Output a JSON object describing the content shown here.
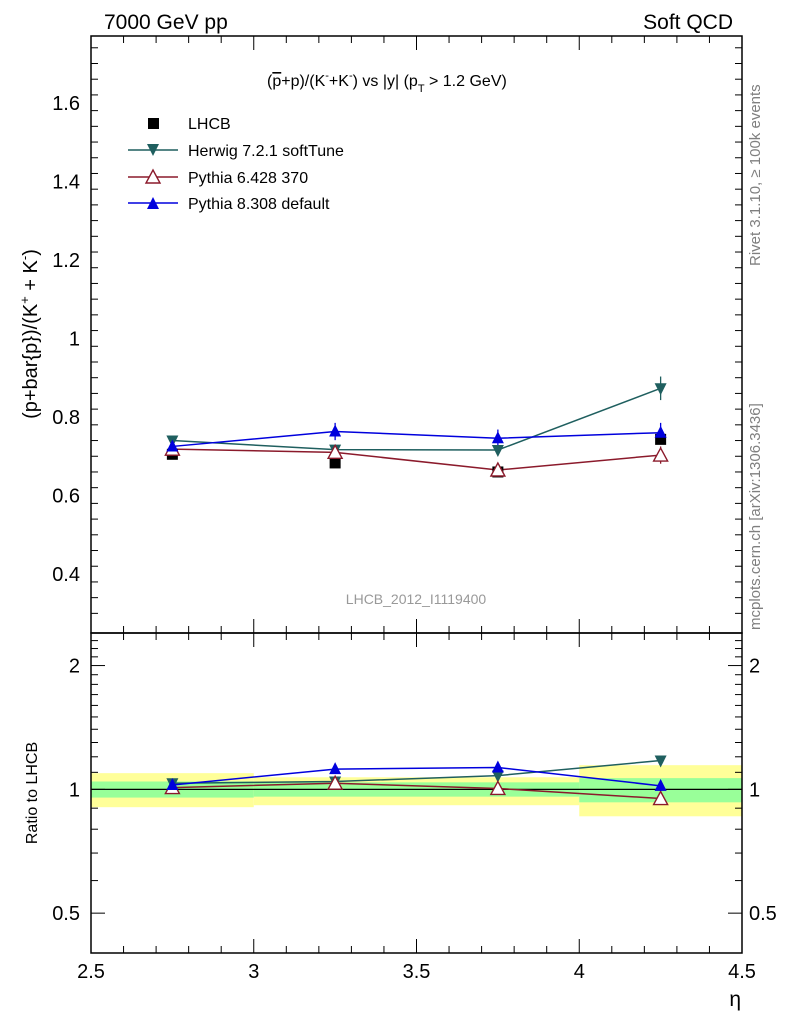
{
  "header": {
    "left": "7000 GeV pp",
    "right": "Soft QCD"
  },
  "side_labels": {
    "rivet": "Rivet 3.1.10, ≥ 100k events",
    "mcplots": "mcplots.cern.ch [arXiv:1306.3436]"
  },
  "analysis_label": "LHCB_2012_I1119400",
  "colors": {
    "data": "#000000",
    "herwig": "#1f5f5f",
    "pythia6": "#8b1a2b",
    "pythia8": "#0000dd",
    "band_inner": "#99ff99",
    "band_outer": "#ffff99"
  },
  "chart_data": [
    {
      "type": "line",
      "panel": "main",
      "title": "(p̅+p)/(K⁻+K⁻) vs |y| (p_T > 1.2 GeV)",
      "title_parts": {
        "a": "(",
        "b": "p",
        "c": "+p)/(K",
        "d": "-",
        "e": "+K",
        "f": "-",
        "g": ") vs |y| (p",
        "h": "T",
        "i": " > 1.2 GeV)"
      },
      "ylabel": "(p+bar{p})/(K⁺ + K⁻)",
      "ylabel_parts": {
        "a": "(p+bar{p})/(K",
        "b": "+",
        "c": " + K",
        "d": "-",
        "e": ")"
      },
      "xlim": [
        2.5,
        4.5
      ],
      "ylim": [
        0.25,
        1.77
      ],
      "yticks": [
        "0.4",
        "0.6",
        "0.8",
        "1",
        "1.2",
        "1.4",
        "1.6"
      ],
      "ytick_values": [
        0.4,
        0.6,
        0.8,
        1.0,
        1.2,
        1.4,
        1.6
      ],
      "legend_position": "top-left",
      "x": [
        2.75,
        3.25,
        3.75,
        4.25
      ],
      "xerr": [
        0.25,
        0.25,
        0.25,
        0.25
      ],
      "series": [
        {
          "name": "LHCB",
          "key": "data",
          "marker": "square",
          "values": [
            0.705,
            0.683,
            0.66,
            0.743
          ]
        },
        {
          "name": "Herwig 7.2.1 softTune",
          "key": "herwig",
          "marker": "triangle-down",
          "values": [
            0.74,
            0.717,
            0.716,
            0.873
          ],
          "errors": [
            0.012,
            0.012,
            0.012,
            0.03
          ]
        },
        {
          "name": "Pythia 6.428 370",
          "key": "pythia6",
          "marker": "triangle-up-open",
          "values": [
            0.718,
            0.71,
            0.665,
            0.703
          ],
          "errors": [
            0.01,
            0.012,
            0.015,
            0.022
          ]
        },
        {
          "name": "Pythia 8.308 default",
          "key": "pythia8",
          "marker": "triangle-up",
          "values": [
            0.725,
            0.763,
            0.746,
            0.76
          ],
          "errors": [
            0.015,
            0.022,
            0.022,
            0.025
          ]
        }
      ]
    },
    {
      "type": "line",
      "panel": "ratio",
      "ylabel": "Ratio to LHCB",
      "xlabel": "η",
      "xlim": [
        2.5,
        4.5
      ],
      "ylim": [
        0.4,
        2.4
      ],
      "log_y": true,
      "yticks": [
        "0.5",
        "1",
        "2"
      ],
      "ytick_values": [
        0.5,
        1,
        2
      ],
      "xticks": [
        "2.5",
        "3",
        "3.5",
        "4",
        "4.5"
      ],
      "xtick_values": [
        2.5,
        3.0,
        3.5,
        4.0,
        4.5
      ],
      "x": [
        2.75,
        3.25,
        3.75,
        4.25
      ],
      "bands": [
        {
          "x0": 2.5,
          "x1": 3.0,
          "inner": [
            0.955,
            1.045
          ],
          "outer": [
            0.905,
            1.095
          ]
        },
        {
          "x0": 3.0,
          "x1": 3.5,
          "inner": [
            0.96,
            1.04
          ],
          "outer": [
            0.915,
            1.07
          ]
        },
        {
          "x0": 3.5,
          "x1": 4.0,
          "inner": [
            0.96,
            1.04
          ],
          "outer": [
            0.915,
            1.07
          ]
        },
        {
          "x0": 4.0,
          "x1": 4.5,
          "inner": [
            0.93,
            1.065
          ],
          "outer": [
            0.86,
            1.145
          ]
        }
      ],
      "series": [
        {
          "name": "Herwig 7.2.1 softTune",
          "key": "herwig",
          "marker": "triangle-down",
          "values": [
            1.035,
            1.045,
            1.08,
            1.175
          ],
          "errors": [
            0.015,
            0.015,
            0.015,
            0.03
          ]
        },
        {
          "name": "Pythia 6.428 370",
          "key": "pythia6",
          "marker": "triangle-up-open",
          "values": [
            1.01,
            1.035,
            1.005,
            0.95
          ],
          "errors": [
            0.012,
            0.015,
            0.02,
            0.03
          ]
        },
        {
          "name": "Pythia 8.308 default",
          "key": "pythia8",
          "marker": "triangle-up",
          "values": [
            1.025,
            1.12,
            1.13,
            1.02
          ],
          "errors": [
            0.02,
            0.03,
            0.03,
            0.03
          ]
        }
      ]
    }
  ]
}
